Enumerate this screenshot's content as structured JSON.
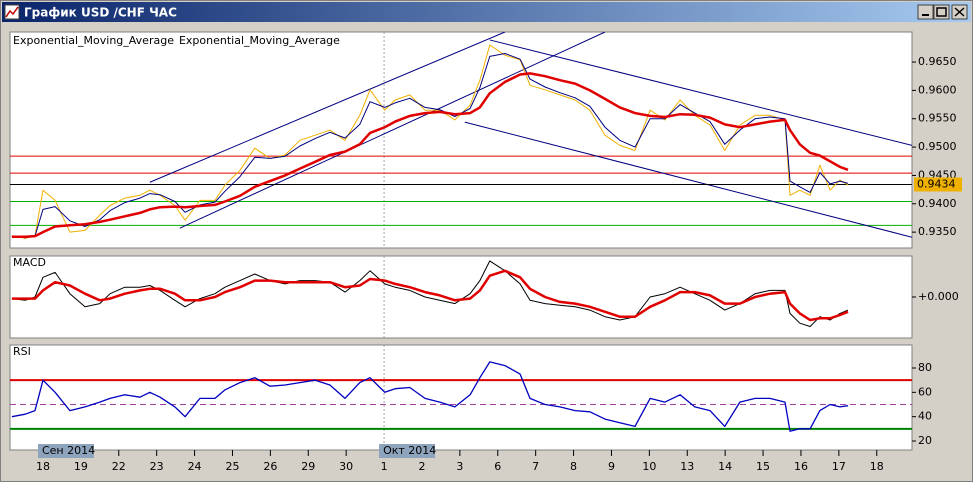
{
  "window": {
    "title": "График USD /CHF ЧАС"
  },
  "chart_data": [
    {
      "type": "line",
      "x": [
        -0.82,
        -0.47,
        -0.21,
        0,
        0.32,
        0.71,
        1.11,
        1.5,
        1.77,
        2.16,
        2.56,
        2.82,
        3.09,
        3.48,
        3.75,
        4.14,
        4.54,
        4.8,
        5.2,
        5.59,
        5.99,
        6.39,
        6.78,
        7.18,
        7.57,
        7.97,
        8.36,
        8.63,
        9.02,
        9.29,
        9.68,
        10.08,
        10.47,
        10.87,
        11.27,
        11.53,
        11.79,
        12.19,
        12.59,
        12.85,
        13.25,
        13.64,
        14.04,
        14.43,
        14.83,
        15.22,
        15.62,
        16.02,
        16.41,
        16.81,
        17.2,
        17.6,
        17.99,
        18.39,
        18.79,
        19.18,
        19.58,
        19.71,
        19.97,
        20.24,
        20.5,
        20.77,
        21.03,
        21.24
      ],
      "xlim": [
        -0.87,
        22.93
      ],
      "ylim": [
        0.9322,
        0.9703
      ],
      "yticks": [
        {
          "value": 0.965,
          "label": "0.9650"
        },
        {
          "value": 0.96,
          "label": "0.9600"
        },
        {
          "value": 0.955,
          "label": "0.9550"
        },
        {
          "value": 0.95,
          "label": "0.9500"
        },
        {
          "value": 0.945,
          "label": "0.9450"
        },
        {
          "value": 0.94,
          "label": "0.9400"
        },
        {
          "value": 0.935,
          "label": "0.9350"
        }
      ],
      "last_price": 0.9434,
      "levels": [
        {
          "value": 0.9484,
          "color": "#e00000"
        },
        {
          "value": 0.9454,
          "color": "#e00000"
        },
        {
          "value": 0.9404,
          "color": "#00b000"
        },
        {
          "value": 0.9362,
          "color": "#00b000"
        }
      ],
      "trendlines": [
        {
          "x": [
            2.82,
            12.19
          ],
          "values": [
            0.9438,
            0.9703
          ],
          "color": "#000080"
        },
        {
          "x": [
            3.61,
            14.83
          ],
          "values": [
            0.9357,
            0.9703
          ],
          "color": "#000080"
        },
        {
          "x": [
            11.79,
            22.93
          ],
          "values": [
            0.9689,
            0.9503
          ],
          "color": "#000080"
        },
        {
          "x": [
            11.13,
            22.93
          ],
          "values": [
            0.9544,
            0.9341
          ],
          "color": "#000080"
        }
      ],
      "series": [
        {
          "color": "#f0b000",
          "values": [
            0.9344,
            0.9339,
            0.9344,
            0.9424,
            0.9406,
            0.935,
            0.9353,
            0.938,
            0.9397,
            0.941,
            0.9415,
            0.9424,
            0.9415,
            0.9397,
            0.9371,
            0.9406,
            0.9406,
            0.9433,
            0.9459,
            0.9498,
            0.948,
            0.9486,
            0.9512,
            0.9521,
            0.953,
            0.9512,
            0.9556,
            0.9601,
            0.9565,
            0.9583,
            0.9592,
            0.9565,
            0.9565,
            0.9548,
            0.9574,
            0.9618,
            0.968,
            0.9662,
            0.9654,
            0.9609,
            0.9601,
            0.9592,
            0.9583,
            0.9565,
            0.9521,
            0.9503,
            0.9494,
            0.9565,
            0.9548,
            0.9583,
            0.9556,
            0.9539,
            0.9494,
            0.9539,
            0.9556,
            0.9556,
            0.9548,
            0.9415,
            0.9424,
            0.9415,
            0.9468,
            0.9424,
            0.9442,
            0.9433
          ]
        },
        {
          "name": "Exponential_Moving_Average",
          "color": "#000080",
          "values": [
            0.9343,
            0.934,
            0.9343,
            0.939,
            0.9395,
            0.937,
            0.936,
            0.9372,
            0.9388,
            0.9402,
            0.941,
            0.9418,
            0.9416,
            0.9404,
            0.9385,
            0.9398,
            0.9403,
            0.9422,
            0.9448,
            0.9482,
            0.948,
            0.9484,
            0.9502,
            0.9515,
            0.9526,
            0.9516,
            0.954,
            0.958,
            0.957,
            0.9578,
            0.9586,
            0.957,
            0.9566,
            0.9554,
            0.9568,
            0.9605,
            0.966,
            0.9665,
            0.9655,
            0.962,
            0.9606,
            0.9596,
            0.9587,
            0.9572,
            0.9535,
            0.9512,
            0.95,
            0.955,
            0.955,
            0.9575,
            0.956,
            0.9545,
            0.9505,
            0.953,
            0.955,
            0.9553,
            0.955,
            0.944,
            0.943,
            0.942,
            0.9455,
            0.9435,
            0.944,
            0.9436
          ]
        },
        {
          "name": "Exponential_Moving_Average",
          "color": "#e00000",
          "values": [
            0.9342,
            0.9342,
            0.9343,
            0.935,
            0.936,
            0.9362,
            0.9364,
            0.9368,
            0.9372,
            0.9378,
            0.9384,
            0.939,
            0.9394,
            0.9395,
            0.9394,
            0.9396,
            0.9398,
            0.9404,
            0.9414,
            0.943,
            0.944,
            0.945,
            0.9462,
            0.9474,
            0.9486,
            0.9492,
            0.9505,
            0.9525,
            0.9535,
            0.9545,
            0.9555,
            0.956,
            0.9562,
            0.9558,
            0.956,
            0.957,
            0.9595,
            0.9615,
            0.9628,
            0.963,
            0.9625,
            0.9618,
            0.9612,
            0.96,
            0.9585,
            0.957,
            0.956,
            0.9555,
            0.9553,
            0.9558,
            0.9557,
            0.9552,
            0.954,
            0.9535,
            0.954,
            0.9545,
            0.9548,
            0.953,
            0.9505,
            0.949,
            0.9485,
            0.9475,
            0.9465,
            0.946
          ]
        }
      ]
    },
    {
      "type": "line",
      "title": "MACD",
      "ylim": [
        -0.0025,
        0.0025
      ],
      "yticks": [
        {
          "value": 0,
          "label": "+0.000"
        }
      ],
      "series": [
        {
          "color": "#000000",
          "values": [
            -0.0001,
            -0.0002,
            0,
            0.0012,
            0.0015,
            0.0002,
            -0.0006,
            -0.0004,
            0.0002,
            0.0006,
            0.0006,
            0.0007,
            0.0004,
            -0.0002,
            -0.0006,
            -0.0001,
            0.0002,
            0.0006,
            0.001,
            0.0014,
            0.001,
            0.0008,
            0.001,
            0.001,
            0.0009,
            0.0003,
            0.001,
            0.0016,
            0.0008,
            0.0006,
            0.0004,
            0,
            -0.0002,
            -0.0004,
            0.0002,
            0.001,
            0.0022,
            0.0016,
            0.0008,
            -0.0002,
            -0.0004,
            -0.0005,
            -0.0006,
            -0.0008,
            -0.0012,
            -0.0014,
            -0.0012,
            0,
            0.0002,
            0.0006,
            0.0002,
            -0.0002,
            -0.0008,
            -0.0004,
            0.0002,
            0.0004,
            0.0004,
            -0.001,
            -0.0016,
            -0.0018,
            -0.0012,
            -0.0014,
            -0.001,
            -0.0008
          ]
        },
        {
          "color": "#e00000",
          "values": [
            -0.0001,
            -0.0001,
            -0.0001,
            0.0004,
            0.0009,
            0.0007,
            0.0002,
            -0.0002,
            -0.0001,
            0.0002,
            0.0004,
            0.0005,
            0.0005,
            0.0002,
            -0.0002,
            -0.0002,
            0,
            0.0003,
            0.0006,
            0.001,
            0.001,
            0.0009,
            0.0009,
            0.0009,
            0.0009,
            0.0006,
            0.0007,
            0.0011,
            0.001,
            0.0008,
            0.0006,
            0.0003,
            0.0001,
            -0.0002,
            -0.0001,
            0.0004,
            0.0013,
            0.0016,
            0.0012,
            0.0005,
            0,
            -0.0003,
            -0.0004,
            -0.0006,
            -0.0009,
            -0.0012,
            -0.0012,
            -0.0006,
            -0.0002,
            0.0003,
            0.0003,
            0.0001,
            -0.0004,
            -0.0004,
            0,
            0.0002,
            0.0003,
            -0.0004,
            -0.001,
            -0.0014,
            -0.0013,
            -0.0013,
            -0.0011,
            -0.0009
          ]
        }
      ]
    },
    {
      "type": "line",
      "title": "RSI",
      "ylim": [
        12.6,
        98.9
      ],
      "yticks": [
        80,
        60,
        40,
        20
      ],
      "levels": [
        {
          "value": 70,
          "color": "#e00000"
        },
        {
          "value": 50,
          "color": "#a040a0",
          "dashed": true
        },
        {
          "value": 30,
          "color": "#008000"
        }
      ],
      "xticks": [
        {
          "value": 0,
          "label": "18"
        },
        {
          "value": 1,
          "label": "19"
        },
        {
          "value": 2,
          "label": "22"
        },
        {
          "value": 3,
          "label": "23"
        },
        {
          "value": 4,
          "label": "24"
        },
        {
          "value": 5,
          "label": "25"
        },
        {
          "value": 6,
          "label": "26"
        },
        {
          "value": 7,
          "label": "29"
        },
        {
          "value": 8,
          "label": "30"
        },
        {
          "value": 9,
          "label": "1"
        },
        {
          "value": 10,
          "label": "2"
        },
        {
          "value": 11,
          "label": "3"
        },
        {
          "value": 12,
          "label": "6"
        },
        {
          "value": 13,
          "label": "7"
        },
        {
          "value": 14,
          "label": "8"
        },
        {
          "value": 15,
          "label": "9"
        },
        {
          "value": 16,
          "label": "10"
        },
        {
          "value": 17,
          "label": "13"
        },
        {
          "value": 18,
          "label": "14"
        },
        {
          "value": 19,
          "label": "15"
        },
        {
          "value": 20,
          "label": "16"
        },
        {
          "value": 21,
          "label": "17"
        },
        {
          "value": 22,
          "label": "18"
        }
      ],
      "month_labels": [
        {
          "value": 0,
          "label": "Сен 2014"
        },
        {
          "value": 9,
          "label": "Окт 2014"
        }
      ],
      "series": [
        {
          "color": "#0000c0",
          "values": [
            40,
            42,
            45,
            70,
            60,
            45,
            48,
            52,
            55,
            58,
            56,
            60,
            56,
            48,
            40,
            55,
            55,
            62,
            68,
            72,
            65,
            66,
            68,
            70,
            66,
            55,
            68,
            72,
            60,
            63,
            64,
            55,
            52,
            48,
            58,
            72,
            85,
            82,
            75,
            55,
            50,
            48,
            45,
            44,
            38,
            35,
            32,
            55,
            52,
            58,
            48,
            45,
            32,
            52,
            55,
            55,
            52,
            28,
            30,
            30,
            45,
            50,
            48,
            49
          ]
        }
      ]
    }
  ]
}
